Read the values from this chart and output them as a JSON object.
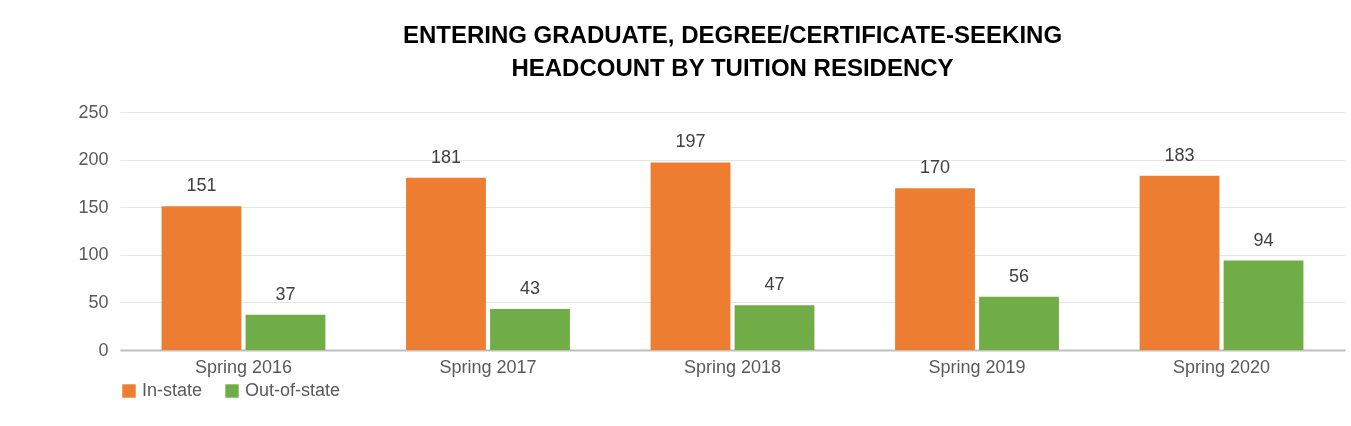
{
  "chart_data": {
    "type": "bar",
    "title": [
      "ENTERING GRADUATE, DEGREE/CERTIFICATE-SEEKING",
      "HEADCOUNT BY TUITION RESIDENCY"
    ],
    "categories": [
      "Spring 2016",
      "Spring 2017",
      "Spring 2018",
      "Spring 2019",
      "Spring 2020"
    ],
    "series": [
      {
        "name": "In-state",
        "color": "#ed7d31",
        "values": [
          151,
          181,
          197,
          170,
          183
        ]
      },
      {
        "name": "Out-of-state",
        "color": "#70ad47",
        "values": [
          37,
          43,
          47,
          56,
          94
        ]
      }
    ],
    "ylim": [
      0,
      250
    ],
    "yticks": [
      0,
      50,
      100,
      150,
      200,
      250
    ],
    "grid": "y",
    "legend": "bottom",
    "data_labels": true
  }
}
